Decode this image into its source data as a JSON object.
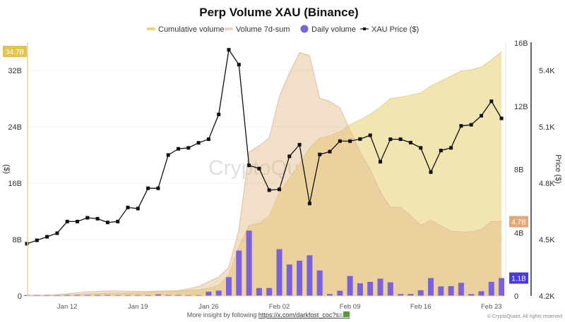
{
  "chart_data": {
    "type": "area+bar+line",
    "title": "Perp Volume XAU (Binance)",
    "legend": {
      "placement": "top",
      "items": [
        "Cumulative volume",
        "Volume 7d-sum",
        "Daily volume",
        "XAU Price ($)"
      ]
    },
    "x": [
      "Jan 08",
      "Jan 09",
      "Jan 10",
      "Jan 11",
      "Jan 12",
      "Jan 13",
      "Jan 14",
      "Jan 15",
      "Jan 16",
      "Jan 17",
      "Jan 18",
      "Jan 19",
      "Jan 20",
      "Jan 21",
      "Jan 22",
      "Jan 23",
      "Jan 24",
      "Jan 25",
      "Jan 26",
      "Jan 27",
      "Jan 28",
      "Jan 29",
      "Jan 30",
      "Jan 31",
      "Feb 01",
      "Feb 02",
      "Feb 03",
      "Feb 04",
      "Feb 05",
      "Feb 06",
      "Feb 07",
      "Feb 08",
      "Feb 09",
      "Feb 10",
      "Feb 11",
      "Feb 12",
      "Feb 13",
      "Feb 14",
      "Feb 15",
      "Feb 16",
      "Feb 17",
      "Feb 18",
      "Feb 19",
      "Feb 20",
      "Feb 21",
      "Feb 22",
      "Feb 23",
      "Feb 24"
    ],
    "x_ticks": [
      "Jan 12",
      "Jan 19",
      "Jan 26",
      "Feb 02",
      "Feb 09",
      "Feb 16",
      "Feb 23"
    ],
    "series": [
      {
        "name": "Cumulative volume",
        "axis": "left",
        "type": "area",
        "color": "#f0e4ad",
        "line_color": "#e3d38a",
        "values": [
          0.03,
          0.03,
          0.03,
          0.08,
          0.14,
          0.2,
          0.26,
          0.32,
          0.38,
          0.39,
          0.41,
          0.45,
          0.5,
          0.6,
          0.66,
          0.72,
          0.78,
          0.85,
          1.1,
          1.5,
          3.0,
          7.0,
          10.0,
          10.3,
          11.3,
          14.7,
          16.7,
          18.7,
          21.0,
          22.4,
          22.7,
          23.3,
          24.3,
          25.0,
          25.8,
          26.8,
          28.0,
          28.2,
          28.5,
          28.8,
          29.8,
          30.5,
          31.2,
          31.9,
          32.1,
          32.5,
          33.5,
          34.7
        ]
      },
      {
        "name": "Volume 7d-sum",
        "axis": "middle",
        "type": "area",
        "color": "#efd9c8",
        "line_color": "#e2bfa4",
        "values": [
          0.05,
          0.05,
          0.05,
          0.08,
          0.14,
          0.2,
          0.26,
          0.29,
          0.32,
          0.32,
          0.3,
          0.29,
          0.28,
          0.32,
          0.32,
          0.34,
          0.45,
          0.6,
          0.9,
          1.2,
          1.8,
          4.2,
          9.1,
          9.5,
          10.0,
          12.6,
          14.1,
          15.4,
          15.2,
          12.5,
          12.3,
          11.9,
          10.5,
          9.1,
          8.0,
          6.6,
          5.6,
          5.6,
          5.1,
          4.46,
          4.8,
          4.45,
          4.1,
          4.05,
          4.05,
          4.2,
          4.7,
          4.7
        ]
      },
      {
        "name": "Daily volume",
        "axis": "middle",
        "type": "bar",
        "color": "#7b61dc",
        "values": [
          0.03,
          0,
          0,
          0.05,
          0.06,
          0.06,
          0.06,
          0.06,
          0.06,
          0,
          0.02,
          0.03,
          0.05,
          0.1,
          0.06,
          0.06,
          0.05,
          0.05,
          0.27,
          0.34,
          1.19,
          2.87,
          4.13,
          0.5,
          0.5,
          2.96,
          1.99,
          2.23,
          2.57,
          1.61,
          0.12,
          0.33,
          1.26,
          0.8,
          0.89,
          1.09,
          0.86,
          0.12,
          0.12,
          0.36,
          1.13,
          0.6,
          0.62,
          0.83,
          0.12,
          0.3,
          0.89,
          1.13
        ]
      },
      {
        "name": "XAU Price ($)",
        "axis": "right",
        "type": "line",
        "color": "#111111",
        "values": [
          4478,
          4496,
          4515,
          4534,
          4596,
          4596,
          4616,
          4611,
          4591,
          4596,
          4671,
          4665,
          4773,
          4773,
          4950,
          4983,
          4988,
          5015,
          5034,
          5166,
          5510,
          5431,
          4895,
          4878,
          4763,
          4767,
          4943,
          5005,
          4692,
          4953,
          4968,
          5024,
          5024,
          5035,
          5055,
          4914,
          5034,
          5034,
          5016,
          4988,
          4859,
          4974,
          4988,
          5105,
          5111,
          5159,
          5236,
          5145
        ]
      }
    ],
    "axes": {
      "left": {
        "label": "($)",
        "ylim": [
          0,
          36
        ],
        "ticks": [
          "0",
          "8B",
          "16B",
          "24B",
          "32B"
        ],
        "tick_values": [
          0,
          8,
          16,
          24,
          32
        ],
        "badge": "34.7B",
        "badge_color": "#e3c54e"
      },
      "middle": {
        "ylim": [
          0,
          16
        ],
        "ticks": [
          "0",
          "4B",
          "8B",
          "12B",
          "16B"
        ],
        "tick_values": [
          0,
          4,
          8,
          12,
          16
        ],
        "badges": [
          {
            "text": "4.7B",
            "value": 4.7,
            "color": "#e2a877"
          },
          {
            "text": "1.1B",
            "value": 1.13,
            "color": "#4a3ad6"
          }
        ]
      },
      "right": {
        "label": "Price ($)",
        "ylim": [
          4200,
          5550
        ],
        "ticks": [
          "4.2K",
          "4.5K",
          "4.8K",
          "5.1K",
          "5.4K"
        ],
        "tick_values": [
          4200,
          4500,
          4800,
          5100,
          5400
        ]
      }
    },
    "grid": true,
    "watermark": "CryptoQuant"
  },
  "footer": {
    "insight_prefix": "More insight by following ",
    "insight_link": "https://x.com/darkfost_coc?s=21",
    "copyright": "© CryptoQuant. All rights reserved"
  }
}
